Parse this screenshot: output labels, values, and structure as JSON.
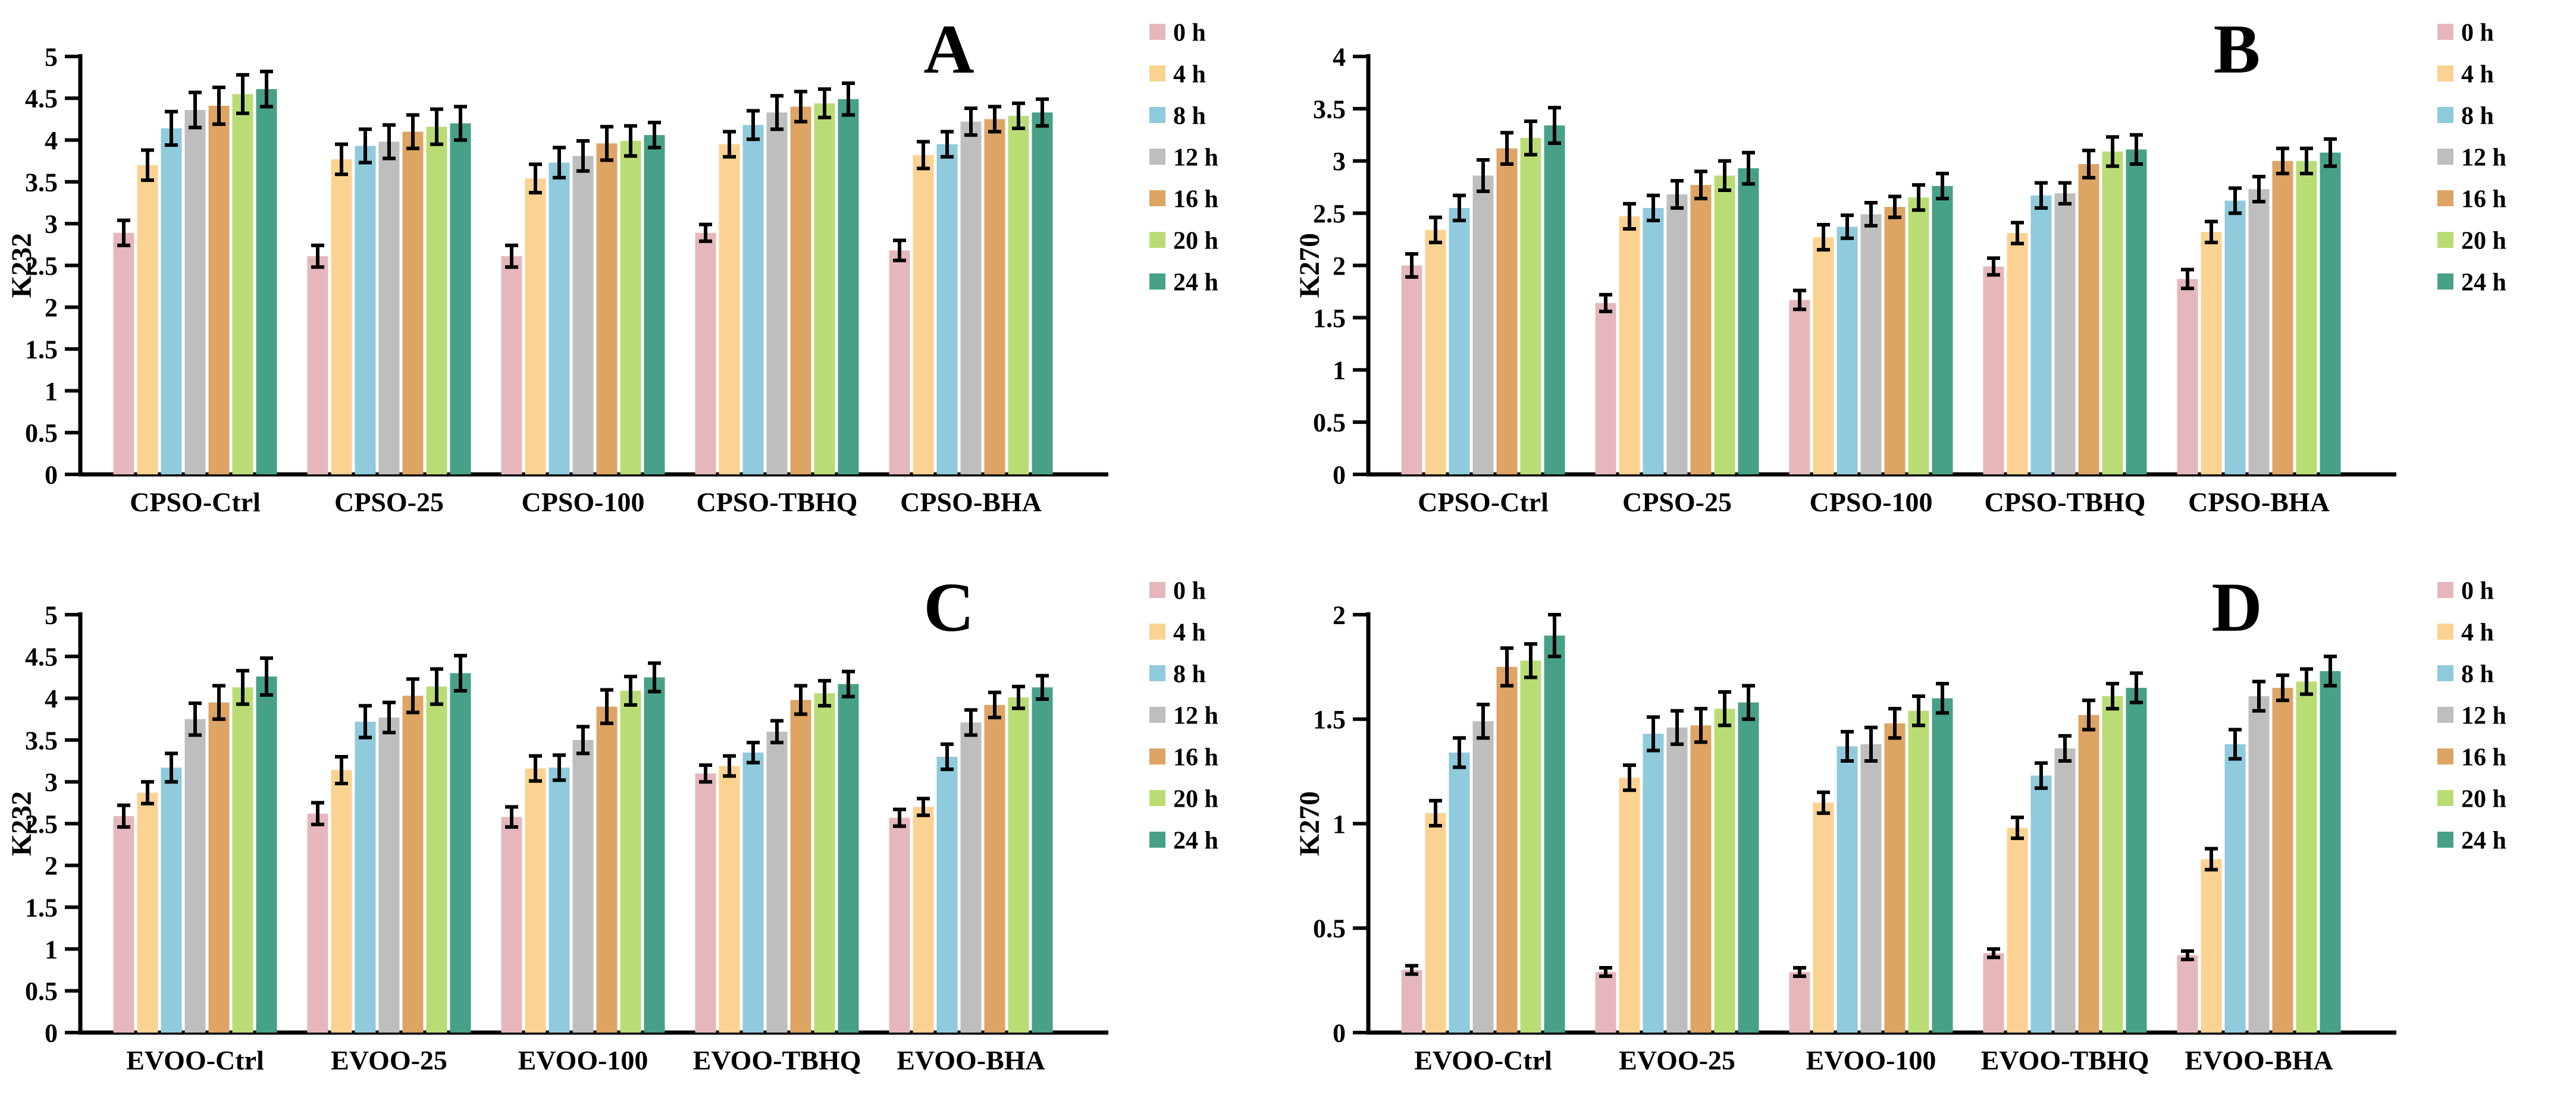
{
  "figure": {
    "background": "#ffffff",
    "axis_color": "#000000",
    "error_bar_color": "#000000"
  },
  "time_series_labels": [
    "0 h",
    "4 h",
    "8 h",
    "12 h",
    "16 h",
    "20 h",
    "24 h"
  ],
  "series_colors": [
    "#e5b7bb",
    "#fbd291",
    "#8fcadd",
    "#bebebe",
    "#dda464",
    "#b9dd74",
    "#47a088"
  ],
  "chart_data": [
    {
      "type": "bar",
      "panel_label": "A",
      "ylabel": "K232",
      "ylim": [
        0,
        5
      ],
      "ytick_step": 0.5,
      "grid": false,
      "legend_position": "right",
      "yticks": [
        "0",
        "0.5",
        "1",
        "1.5",
        "2",
        "2.5",
        "3",
        "3.5",
        "4",
        "4.5",
        "5"
      ],
      "categories": [
        "CPSO-Ctrl",
        "CPSO-25",
        "CPSO-100",
        "CPSO-TBHQ",
        "CPSO-BHA"
      ],
      "series": [
        {
          "name": "0 h",
          "color": "#e5b7bb",
          "values": [
            2.89,
            2.61,
            2.61,
            2.89,
            2.68
          ],
          "errors": [
            0.15,
            0.13,
            0.13,
            0.1,
            0.12
          ]
        },
        {
          "name": "4 h",
          "color": "#fbd291",
          "values": [
            3.7,
            3.77,
            3.54,
            3.95,
            3.82
          ],
          "errors": [
            0.18,
            0.18,
            0.17,
            0.15,
            0.16
          ]
        },
        {
          "name": "8 h",
          "color": "#8fcadd",
          "values": [
            4.14,
            3.93,
            3.73,
            4.18,
            3.95
          ],
          "errors": [
            0.2,
            0.2,
            0.18,
            0.17,
            0.15
          ]
        },
        {
          "name": "12 h",
          "color": "#bebebe",
          "values": [
            4.36,
            3.98,
            3.81,
            4.33,
            4.22
          ],
          "errors": [
            0.21,
            0.2,
            0.18,
            0.2,
            0.16
          ]
        },
        {
          "name": "16 h",
          "color": "#dda464",
          "values": [
            4.41,
            4.1,
            3.96,
            4.4,
            4.25
          ],
          "errors": [
            0.22,
            0.2,
            0.2,
            0.18,
            0.15
          ]
        },
        {
          "name": "20 h",
          "color": "#b9dd74",
          "values": [
            4.55,
            4.16,
            3.99,
            4.44,
            4.29
          ],
          "errors": [
            0.23,
            0.21,
            0.18,
            0.17,
            0.15
          ]
        },
        {
          "name": "24 h",
          "color": "#47a088",
          "values": [
            4.61,
            4.2,
            4.06,
            4.49,
            4.33
          ],
          "errors": [
            0.21,
            0.2,
            0.15,
            0.19,
            0.16
          ]
        }
      ]
    },
    {
      "type": "bar",
      "panel_label": "B",
      "ylabel": "K270",
      "ylim": [
        0,
        4
      ],
      "ytick_step": 0.5,
      "grid": false,
      "legend_position": "right",
      "yticks": [
        "0",
        "0.5",
        "1",
        "1.5",
        "2",
        "2.5",
        "3",
        "3.5",
        "4"
      ],
      "categories": [
        "CPSO-Ctrl",
        "CPSO-25",
        "CPSO-100",
        "CPSO-TBHQ",
        "CPSO-BHA"
      ],
      "series": [
        {
          "name": "0 h",
          "color": "#e5b7bb",
          "values": [
            2.0,
            1.64,
            1.67,
            1.99,
            1.87
          ],
          "errors": [
            0.11,
            0.08,
            0.09,
            0.08,
            0.09
          ]
        },
        {
          "name": "4 h",
          "color": "#fbd291",
          "values": [
            2.34,
            2.47,
            2.27,
            2.31,
            2.32
          ],
          "errors": [
            0.12,
            0.12,
            0.12,
            0.1,
            0.1
          ]
        },
        {
          "name": "8 h",
          "color": "#8fcadd",
          "values": [
            2.55,
            2.55,
            2.37,
            2.67,
            2.62
          ],
          "errors": [
            0.12,
            0.12,
            0.11,
            0.12,
            0.12
          ]
        },
        {
          "name": "12 h",
          "color": "#bebebe",
          "values": [
            2.86,
            2.68,
            2.49,
            2.69,
            2.73
          ],
          "errors": [
            0.15,
            0.13,
            0.11,
            0.1,
            0.12
          ]
        },
        {
          "name": "16 h",
          "color": "#dda464",
          "values": [
            3.12,
            2.77,
            2.56,
            2.97,
            3.0
          ],
          "errors": [
            0.15,
            0.13,
            0.1,
            0.13,
            0.12
          ]
        },
        {
          "name": "20 h",
          "color": "#b9dd74",
          "values": [
            3.22,
            2.86,
            2.65,
            3.09,
            3.0
          ],
          "errors": [
            0.16,
            0.14,
            0.12,
            0.14,
            0.12
          ]
        },
        {
          "name": "24 h",
          "color": "#47a088",
          "values": [
            3.34,
            2.93,
            2.76,
            3.11,
            3.08
          ],
          "errors": [
            0.17,
            0.15,
            0.12,
            0.14,
            0.13
          ]
        }
      ]
    },
    {
      "type": "bar",
      "panel_label": "C",
      "ylabel": "K232",
      "ylim": [
        0,
        5
      ],
      "ytick_step": 0.5,
      "grid": false,
      "legend_position": "right",
      "yticks": [
        "0",
        "0.5",
        "1",
        "1.5",
        "2",
        "2.5",
        "3",
        "3.5",
        "4",
        "4.5",
        "5"
      ],
      "categories": [
        "EVOO-Ctrl",
        "EVOO-25",
        "EVOO-100",
        "EVOO-TBHQ",
        "EVOO-BHA"
      ],
      "series": [
        {
          "name": "0 h",
          "color": "#e5b7bb",
          "values": [
            2.59,
            2.62,
            2.58,
            3.1,
            2.57
          ],
          "errors": [
            0.13,
            0.13,
            0.12,
            0.1,
            0.1
          ]
        },
        {
          "name": "4 h",
          "color": "#fbd291",
          "values": [
            2.87,
            3.14,
            3.16,
            3.19,
            2.7
          ],
          "errors": [
            0.13,
            0.16,
            0.15,
            0.12,
            0.1
          ]
        },
        {
          "name": "8 h",
          "color": "#8fcadd",
          "values": [
            3.17,
            3.72,
            3.17,
            3.35,
            3.3
          ],
          "errors": [
            0.17,
            0.19,
            0.15,
            0.12,
            0.15
          ]
        },
        {
          "name": "12 h",
          "color": "#bebebe",
          "values": [
            3.75,
            3.77,
            3.5,
            3.6,
            3.71
          ],
          "errors": [
            0.19,
            0.18,
            0.16,
            0.13,
            0.15
          ]
        },
        {
          "name": "16 h",
          "color": "#dda464",
          "values": [
            3.95,
            4.03,
            3.9,
            3.98,
            3.92
          ],
          "errors": [
            0.2,
            0.2,
            0.2,
            0.17,
            0.15
          ]
        },
        {
          "name": "20 h",
          "color": "#b9dd74",
          "values": [
            4.13,
            4.14,
            4.09,
            4.06,
            4.01
          ],
          "errors": [
            0.2,
            0.21,
            0.17,
            0.15,
            0.13
          ]
        },
        {
          "name": "24 h",
          "color": "#47a088",
          "values": [
            4.26,
            4.3,
            4.25,
            4.17,
            4.13
          ],
          "errors": [
            0.22,
            0.21,
            0.17,
            0.15,
            0.14
          ]
        }
      ]
    },
    {
      "type": "bar",
      "panel_label": "D",
      "ylabel": "K270",
      "ylim": [
        0,
        2
      ],
      "ytick_step": 0.5,
      "grid": false,
      "legend_position": "right",
      "yticks": [
        "0",
        "0.5",
        "1",
        "1.5",
        "2"
      ],
      "categories": [
        "EVOO-Ctrl",
        "EVOO-25",
        "EVOO-100",
        "EVOO-TBHQ",
        "EVOO-BHA"
      ],
      "series": [
        {
          "name": "0 h",
          "color": "#e5b7bb",
          "values": [
            0.3,
            0.29,
            0.29,
            0.38,
            0.37
          ],
          "errors": [
            0.02,
            0.02,
            0.02,
            0.02,
            0.02
          ]
        },
        {
          "name": "4 h",
          "color": "#fbd291",
          "values": [
            1.05,
            1.22,
            1.1,
            0.98,
            0.83
          ],
          "errors": [
            0.06,
            0.06,
            0.05,
            0.05,
            0.05
          ]
        },
        {
          "name": "8 h",
          "color": "#8fcadd",
          "values": [
            1.34,
            1.43,
            1.37,
            1.23,
            1.38
          ],
          "errors": [
            0.07,
            0.08,
            0.07,
            0.06,
            0.07
          ]
        },
        {
          "name": "12 h",
          "color": "#bebebe",
          "values": [
            1.49,
            1.46,
            1.38,
            1.36,
            1.61
          ],
          "errors": [
            0.08,
            0.08,
            0.08,
            0.06,
            0.07
          ]
        },
        {
          "name": "16 h",
          "color": "#dda464",
          "values": [
            1.75,
            1.47,
            1.48,
            1.52,
            1.65
          ],
          "errors": [
            0.09,
            0.08,
            0.07,
            0.07,
            0.06
          ]
        },
        {
          "name": "20 h",
          "color": "#b9dd74",
          "values": [
            1.78,
            1.55,
            1.54,
            1.61,
            1.68
          ],
          "errors": [
            0.08,
            0.08,
            0.07,
            0.06,
            0.06
          ]
        },
        {
          "name": "24 h",
          "color": "#47a088",
          "values": [
            1.9,
            1.58,
            1.6,
            1.65,
            1.73
          ],
          "errors": [
            0.1,
            0.08,
            0.07,
            0.07,
            0.07
          ]
        }
      ]
    }
  ]
}
